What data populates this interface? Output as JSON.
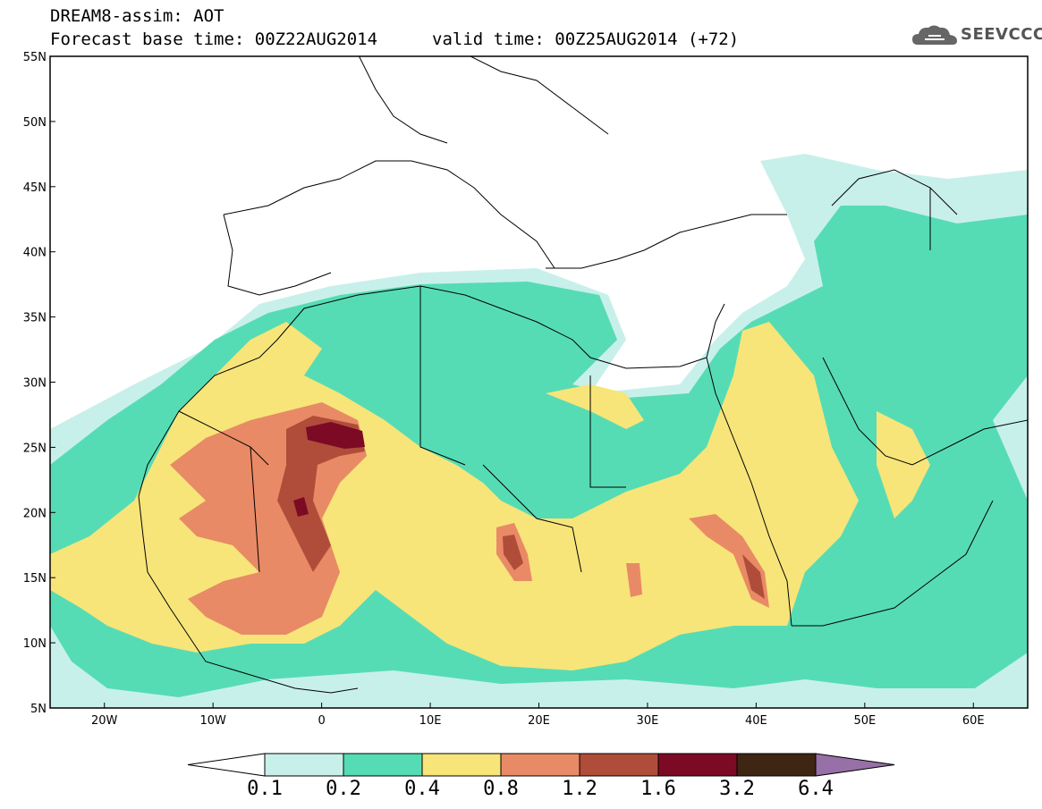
{
  "header": {
    "line1": "DREAM8-assim: AOT",
    "line2_base": "Forecast base time: 00Z22AUG2014",
    "line2_valid": "valid time: 00Z25AUG2014 (+72)"
  },
  "logo": {
    "text": "SEEVCCC",
    "icon": "cloud-icon"
  },
  "map": {
    "lon_range": [
      -25,
      65
    ],
    "lat_range": [
      5,
      55
    ],
    "lat_ticks": [
      "55N",
      "50N",
      "45N",
      "40N",
      "35N",
      "30N",
      "25N",
      "20N",
      "15N",
      "10N",
      "5N"
    ],
    "lon_ticks": [
      "20W",
      "10W",
      "0",
      "10E",
      "20E",
      "30E",
      "40E",
      "50E",
      "60E"
    ]
  },
  "legend": {
    "colors": [
      "#c8f0ea",
      "#56dcb4",
      "#f7e57a",
      "#e98a66",
      "#b04d3a",
      "#7d0a25",
      "#3e2612",
      "#9670a6"
    ],
    "labels": [
      "0.1",
      "0.2",
      "0.4",
      "0.8",
      "1.2",
      "1.6",
      "3.2",
      "6.4"
    ]
  }
}
